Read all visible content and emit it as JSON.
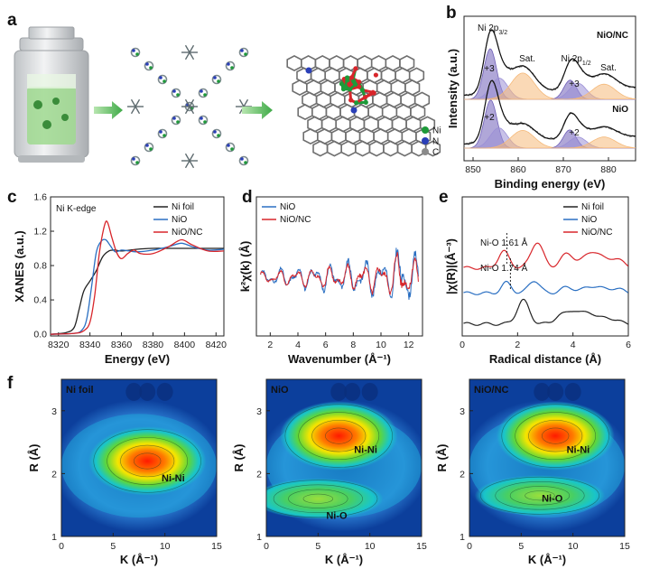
{
  "panels": {
    "a": {
      "label": "a",
      "legend": [
        {
          "symbol": "Ni",
          "color": "#1e9a3a"
        },
        {
          "symbol": "N",
          "color": "#2a3fb8"
        },
        {
          "symbol": "C",
          "color": "#8a8a8a"
        }
      ]
    },
    "b": {
      "label": "b"
    },
    "c": {
      "label": "c"
    },
    "d": {
      "label": "d"
    },
    "e": {
      "label": "e"
    },
    "f": {
      "label": "f"
    }
  },
  "chart_data": [
    {
      "id": "b",
      "type": "line",
      "xlabel": "Binding energy (eV)",
      "ylabel": "Intensity (a.u.)",
      "xlim": [
        848,
        886
      ],
      "xticks": [
        850,
        860,
        870,
        880
      ],
      "samples": [
        "NiO/NC",
        "NiO"
      ],
      "annotations": {
        "peak1": "Ni 2p",
        "peak1_sub": "3/2",
        "peak2": "Ni 2p",
        "peak2_sub": "1/2",
        "sat": "Sat.",
        "ox3": "+3",
        "ox2": "+2"
      },
      "series": [
        {
          "name": "NiO/NC",
          "peaks": [
            {
              "center": 853.8,
              "height": 1.0
            },
            {
              "center": 855.8,
              "height": 0.42
            },
            {
              "center": 861.0,
              "height": 0.52
            },
            {
              "center": 871.5,
              "height": 0.38
            },
            {
              "center": 873.2,
              "height": 0.32
            },
            {
              "center": 879.0,
              "height": 0.3
            }
          ]
        },
        {
          "name": "NiO",
          "peaks": [
            {
              "center": 853.9,
              "height": 0.95
            },
            {
              "center": 855.7,
              "height": 0.4
            },
            {
              "center": 861.0,
              "height": 0.35
            },
            {
              "center": 871.4,
              "height": 0.36
            },
            {
              "center": 873.2,
              "height": 0.22
            },
            {
              "center": 879.0,
              "height": 0.22
            }
          ]
        }
      ]
    },
    {
      "id": "c",
      "type": "line",
      "title": "Ni K-edge",
      "xlabel": "Energy (eV)",
      "ylabel": "XANES (a.u.)",
      "xlim": [
        8315,
        8425
      ],
      "ylim": [
        -0.02,
        1.6
      ],
      "xticks": [
        8320,
        8340,
        8360,
        8380,
        8400,
        8420
      ],
      "yticks": [
        0.0,
        0.4,
        0.8,
        1.2,
        1.6
      ],
      "series": [
        {
          "name": "Ni foil",
          "color": "#222222",
          "x": [
            8315,
            8325,
            8330,
            8333,
            8336,
            8340,
            8344,
            8348,
            8352,
            8356,
            8360,
            8370,
            8380,
            8390,
            8400,
            8410,
            8425
          ],
          "y": [
            0.0,
            0.02,
            0.08,
            0.28,
            0.5,
            0.62,
            0.74,
            0.9,
            0.97,
            0.98,
            0.97,
            0.99,
            1.0,
            1.0,
            1.0,
            1.0,
            1.0
          ]
        },
        {
          "name": "NiO",
          "color": "#2a6fc2",
          "x": [
            8315,
            8330,
            8335,
            8338,
            8341,
            8344,
            8347,
            8350,
            8353,
            8356,
            8360,
            8365,
            8370,
            8380,
            8390,
            8398,
            8405,
            8415,
            8425
          ],
          "y": [
            0.0,
            0.01,
            0.05,
            0.18,
            0.55,
            0.95,
            1.08,
            1.1,
            1.03,
            0.96,
            0.98,
            0.97,
            0.96,
            0.98,
            1.02,
            1.06,
            1.02,
            0.98,
            0.99
          ]
        },
        {
          "name": "NiO/NC",
          "color": "#d8262b",
          "x": [
            8315,
            8330,
            8336,
            8340,
            8343,
            8346,
            8349,
            8351,
            8354,
            8357,
            8360,
            8364,
            8368,
            8372,
            8380,
            8390,
            8398,
            8405,
            8415,
            8425
          ],
          "y": [
            0.0,
            0.01,
            0.04,
            0.14,
            0.45,
            0.95,
            1.25,
            1.31,
            1.12,
            0.95,
            0.88,
            0.94,
            0.98,
            0.94,
            0.94,
            1.02,
            1.1,
            1.04,
            0.97,
            0.97
          ]
        }
      ]
    },
    {
      "id": "d",
      "type": "line",
      "xlabel": "Wavenumber (Å⁻¹)",
      "ylabel": "k²χ(k) (Å)",
      "xlim": [
        1,
        13
      ],
      "xticks": [
        2,
        4,
        6,
        8,
        10,
        12
      ],
      "series": [
        {
          "name": "NiO",
          "color": "#2a6fc2"
        },
        {
          "name": "NiO/NC",
          "color": "#d8262b"
        }
      ]
    },
    {
      "id": "e",
      "type": "line",
      "xlabel": "Radical distance (Å)",
      "ylabel": "|χ(R)|(Å⁻³)",
      "xlim": [
        0,
        6
      ],
      "xticks": [
        0,
        2,
        4,
        6
      ],
      "annotations": [
        {
          "text": "Ni-O  1.61 Å",
          "x": 1.61,
          "series": "NiO/NC"
        },
        {
          "text": "Ni-O  1.74 Å",
          "x": 1.74,
          "series": "NiO"
        }
      ],
      "series": [
        {
          "name": "Ni foil",
          "color": "#222222"
        },
        {
          "name": "NiO",
          "color": "#2a6fc2"
        },
        {
          "name": "NiO/NC",
          "color": "#d8262b"
        }
      ]
    },
    {
      "id": "f",
      "type": "heatmap",
      "xlabel": "K (Å⁻¹)",
      "ylabel": "R (Å)",
      "xlim": [
        0,
        15
      ],
      "ylim": [
        1,
        3.5
      ],
      "xticks": [
        0,
        5,
        10,
        15
      ],
      "yticks": [
        1,
        2,
        3
      ],
      "maps": [
        {
          "name": "Ni foil",
          "hotspots": [
            {
              "k": 8.3,
              "r": 2.2,
              "intensity": 1.0,
              "label": "Ni-Ni",
              "label_k": 10.8,
              "label_r": 1.88
            }
          ]
        },
        {
          "name": "NiO",
          "hotspots": [
            {
              "k": 7.0,
              "r": 2.6,
              "intensity": 1.0,
              "label": "Ni-Ni",
              "label_k": 9.6,
              "label_r": 2.33
            },
            {
              "k": 5.0,
              "r": 1.6,
              "intensity": 0.45,
              "label": "Ni-O",
              "label_k": 6.8,
              "label_r": 1.28
            }
          ]
        },
        {
          "name": "NiO/NC",
          "hotspots": [
            {
              "k": 8.3,
              "r": 2.6,
              "intensity": 1.0,
              "label": "Ni-Ni",
              "label_k": 10.5,
              "label_r": 2.33
            },
            {
              "k": 6.8,
              "r": 1.65,
              "intensity": 0.35,
              "label": "Ni-O",
              "label_k": 8.0,
              "label_r": 1.55
            }
          ]
        }
      ]
    }
  ]
}
